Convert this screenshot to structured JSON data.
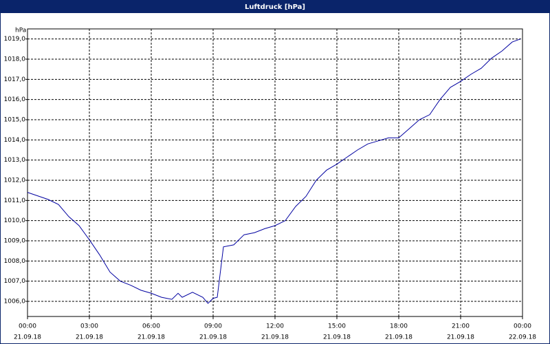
{
  "chart_data": {
    "type": "line",
    "title": "Luftdruck [hPa]",
    "ylabel": "hPa",
    "x": [
      0,
      1,
      1.5,
      2,
      2.5,
      3,
      3.5,
      4,
      4.5,
      5,
      5.5,
      6,
      6.5,
      7,
      7.3,
      7.5,
      8,
      8.5,
      8.75,
      9,
      9.2,
      9.5,
      10,
      10.5,
      11,
      11.5,
      12,
      12.5,
      13,
      13.5,
      14,
      14.5,
      15,
      15.5,
      16,
      16.5,
      17,
      17.5,
      18,
      18.5,
      19,
      19.5,
      20,
      20.5,
      21,
      21.5,
      22,
      22.5,
      23,
      23.5,
      23.9
    ],
    "series": [
      {
        "name": "Luftdruck",
        "color": "#0000a0",
        "values": [
          1011.4,
          1011.05,
          1010.8,
          1010.2,
          1009.75,
          1009.05,
          1008.3,
          1007.45,
          1007.0,
          1006.8,
          1006.55,
          1006.4,
          1006.2,
          1006.1,
          1006.4,
          1006.2,
          1006.45,
          1006.2,
          1005.9,
          1006.15,
          1006.2,
          1008.7,
          1008.8,
          1009.3,
          1009.4,
          1009.6,
          1009.75,
          1010.0,
          1010.7,
          1011.2,
          1012.0,
          1012.5,
          1012.8,
          1013.15,
          1013.5,
          1013.8,
          1013.95,
          1014.1,
          1014.1,
          1014.55,
          1015.0,
          1015.25,
          1016.0,
          1016.6,
          1016.9,
          1017.25,
          1017.55,
          1018.05,
          1018.4,
          1018.85,
          1019.0
        ]
      }
    ],
    "xlim": [
      0,
      24
    ],
    "xticks": [
      {
        "value": 0,
        "label": "00:00",
        "date": "21.09.18"
      },
      {
        "value": 3,
        "label": "03:00",
        "date": "21.09.18"
      },
      {
        "value": 6,
        "label": "06:00",
        "date": "21.09.18"
      },
      {
        "value": 9,
        "label": "09:00",
        "date": "21.09.18"
      },
      {
        "value": 12,
        "label": "12:00",
        "date": "21.09.18"
      },
      {
        "value": 15,
        "label": "15:00",
        "date": "21.09.18"
      },
      {
        "value": 18,
        "label": "18:00",
        "date": "21.09.18"
      },
      {
        "value": 21,
        "label": "21:00",
        "date": "21.09.18"
      },
      {
        "value": 24,
        "label": "00:00",
        "date": "22.09.18"
      }
    ],
    "ylim": [
      1005.25,
      1019.5
    ],
    "yticks": [
      {
        "value": 1006,
        "label": "1006,0"
      },
      {
        "value": 1007,
        "label": "1007,0"
      },
      {
        "value": 1008,
        "label": "1008,0"
      },
      {
        "value": 1009,
        "label": "1009,0"
      },
      {
        "value": 1010,
        "label": "1010,0"
      },
      {
        "value": 1011,
        "label": "1011,0"
      },
      {
        "value": 1012,
        "label": "1012,0"
      },
      {
        "value": 1013,
        "label": "1013,0"
      },
      {
        "value": 1014,
        "label": "1014,0"
      },
      {
        "value": 1015,
        "label": "1015,0"
      },
      {
        "value": 1016,
        "label": "1016,0"
      },
      {
        "value": 1017,
        "label": "1017,0"
      },
      {
        "value": 1018,
        "label": "1018,0"
      },
      {
        "value": 1019,
        "label": "1019,0"
      }
    ],
    "grid": true
  }
}
